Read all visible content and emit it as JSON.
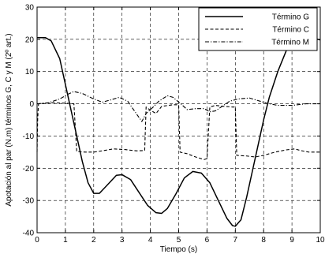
{
  "chart_data": {
    "type": "line",
    "title": "",
    "xlabel": "Tiempo (s)",
    "ylabel": "Apotación al par (N.m) términos G, C y M (2º art.)",
    "xlim": [
      0,
      10
    ],
    "ylim": [
      -40,
      30
    ],
    "xticks": [
      0,
      1,
      2,
      3,
      4,
      5,
      6,
      7,
      8,
      9,
      10
    ],
    "yticks": [
      -40,
      -30,
      -20,
      -10,
      0,
      10,
      20,
      30
    ],
    "grid": true,
    "grid_style": "dashed",
    "legend_position": "top-right",
    "series": [
      {
        "name": "Término G",
        "style": "solid",
        "points": [
          [
            0,
            20.5
          ],
          [
            0.3,
            20.5
          ],
          [
            0.5,
            19.5
          ],
          [
            0.8,
            14
          ],
          [
            1.0,
            6
          ],
          [
            1.2,
            -2
          ],
          [
            1.4,
            -10
          ],
          [
            1.6,
            -18
          ],
          [
            1.8,
            -24.5
          ],
          [
            2.0,
            -27.8
          ],
          [
            2.2,
            -27.8
          ],
          [
            2.5,
            -25
          ],
          [
            2.8,
            -22.2
          ],
          [
            3.0,
            -22
          ],
          [
            3.3,
            -23.5
          ],
          [
            3.6,
            -27.5
          ],
          [
            3.9,
            -31.5
          ],
          [
            4.2,
            -33.8
          ],
          [
            4.4,
            -34
          ],
          [
            4.6,
            -32.5
          ],
          [
            4.9,
            -28
          ],
          [
            5.2,
            -23
          ],
          [
            5.5,
            -21
          ],
          [
            5.8,
            -21.5
          ],
          [
            6.1,
            -24.5
          ],
          [
            6.4,
            -30
          ],
          [
            6.7,
            -35.5
          ],
          [
            6.9,
            -37.8
          ],
          [
            7.0,
            -38
          ],
          [
            7.2,
            -36
          ],
          [
            7.4,
            -29
          ],
          [
            7.6,
            -21
          ],
          [
            7.8,
            -13
          ],
          [
            8.0,
            -5
          ],
          [
            8.2,
            2
          ],
          [
            8.5,
            10
          ],
          [
            8.8,
            16.5
          ],
          [
            9.1,
            20.5
          ],
          [
            9.3,
            21.2
          ],
          [
            9.6,
            20.8
          ],
          [
            10.0,
            19.8
          ]
        ]
      },
      {
        "name": "Término C",
        "style": "dashed",
        "points": [
          [
            0,
            -15
          ],
          [
            0.02,
            -5
          ],
          [
            0.05,
            0
          ],
          [
            0.5,
            0.3
          ],
          [
            1.0,
            0.2
          ],
          [
            1.3,
            0
          ],
          [
            1.4,
            -14.8
          ],
          [
            1.7,
            -15
          ],
          [
            2.0,
            -15
          ],
          [
            2.3,
            -14.6
          ],
          [
            2.7,
            -14
          ],
          [
            3.1,
            -14.2
          ],
          [
            3.5,
            -14.6
          ],
          [
            3.8,
            -14.5
          ],
          [
            3.85,
            -1
          ],
          [
            4.0,
            -2
          ],
          [
            4.2,
            -3
          ],
          [
            4.4,
            -0.8
          ],
          [
            4.8,
            -0.3
          ],
          [
            5.0,
            -0.3
          ],
          [
            5.05,
            -15
          ],
          [
            5.3,
            -15.5
          ],
          [
            5.6,
            -16.5
          ],
          [
            5.9,
            -17.3
          ],
          [
            6.0,
            -17
          ],
          [
            6.1,
            -1
          ],
          [
            6.3,
            -0.5
          ],
          [
            6.6,
            -0.8
          ],
          [
            6.9,
            -1
          ],
          [
            7.0,
            -1
          ],
          [
            7.05,
            -16
          ],
          [
            7.4,
            -16.2
          ],
          [
            7.7,
            -16.5
          ],
          [
            8.0,
            -16
          ],
          [
            8.4,
            -15
          ],
          [
            8.8,
            -14.3
          ],
          [
            9.1,
            -14
          ],
          [
            9.3,
            -14.5
          ],
          [
            9.6,
            -15
          ],
          [
            10.0,
            -15
          ]
        ]
      },
      {
        "name": "Término M",
        "style": "dashdot",
        "points": [
          [
            0,
            0
          ],
          [
            0.4,
            0.3
          ],
          [
            0.8,
            1.5
          ],
          [
            1.1,
            3
          ],
          [
            1.3,
            3.8
          ],
          [
            1.6,
            3.2
          ],
          [
            2.0,
            1.5
          ],
          [
            2.3,
            0.5
          ],
          [
            2.6,
            1.2
          ],
          [
            2.9,
            2
          ],
          [
            3.2,
            0.8
          ],
          [
            3.5,
            -3
          ],
          [
            3.7,
            -5.5
          ],
          [
            3.85,
            -3
          ],
          [
            4.1,
            -1
          ],
          [
            4.3,
            0.8
          ],
          [
            4.6,
            2.5
          ],
          [
            4.8,
            2
          ],
          [
            5.1,
            -0.2
          ],
          [
            5.3,
            -1.8
          ],
          [
            5.6,
            -1.5
          ],
          [
            5.9,
            -1.5
          ],
          [
            6.1,
            -2.5
          ],
          [
            6.3,
            -2.2
          ],
          [
            6.5,
            -1
          ],
          [
            6.8,
            0.8
          ],
          [
            7.1,
            1.5
          ],
          [
            7.5,
            1.8
          ],
          [
            7.8,
            1
          ],
          [
            8.1,
            0.2
          ],
          [
            8.5,
            -0.5
          ],
          [
            9.0,
            -0.5
          ],
          [
            9.5,
            0
          ],
          [
            10.0,
            0
          ]
        ]
      }
    ]
  }
}
